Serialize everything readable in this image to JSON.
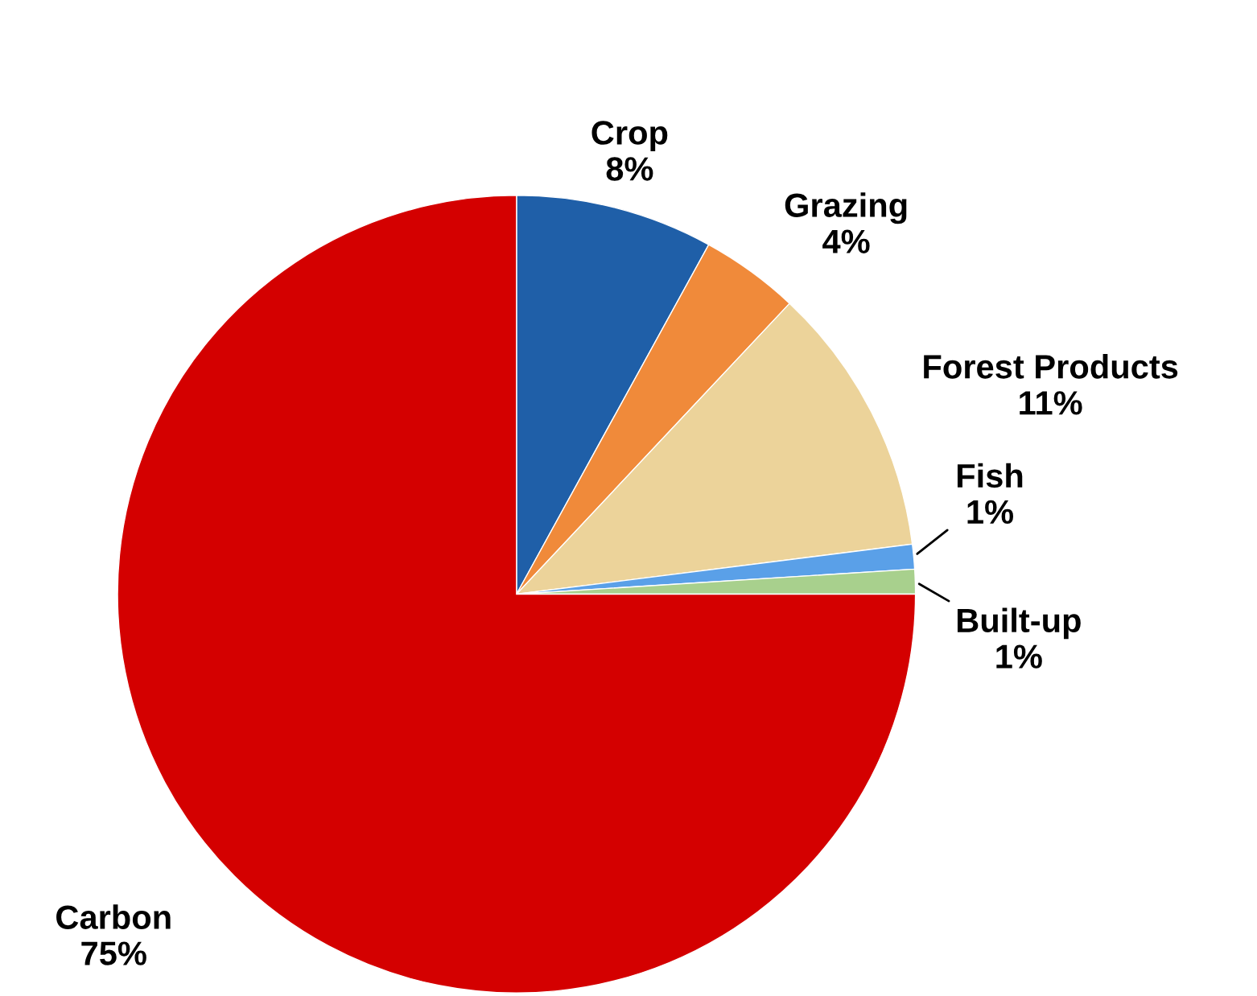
{
  "chart_data": {
    "type": "pie",
    "categories": [
      "Crop",
      "Grazing",
      "Forest Products",
      "Fish",
      "Built-up",
      "Carbon"
    ],
    "values": [
      8,
      4,
      11,
      1,
      1,
      75
    ],
    "value_labels": [
      "8%",
      "4%",
      "11%",
      "1%",
      "1%",
      "75%"
    ],
    "colors": [
      "#1f5fa8",
      "#f08a3a",
      "#ecd39a",
      "#5aa0e8",
      "#a8d08d",
      "#d40000"
    ],
    "legend": false
  }
}
